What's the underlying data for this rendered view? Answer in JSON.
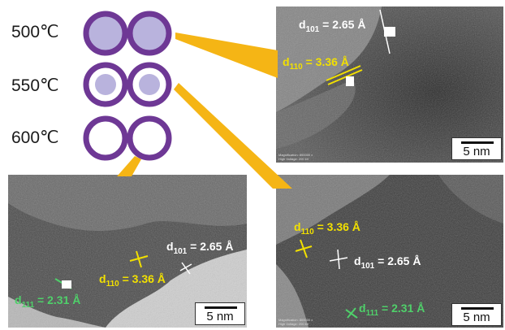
{
  "temperatures": [
    {
      "label": "500℃",
      "shell": "full-core"
    },
    {
      "label": "550℃",
      "shell": "partial-core"
    },
    {
      "label": "600℃",
      "shell": "hollow"
    }
  ],
  "colors": {
    "shell_purple": "#6e3895",
    "core_lavender": "#b9b3dd",
    "connector_yellow": "#f5b515",
    "label_yellow": "#f2e000",
    "label_green": "#4fd06a",
    "label_white": "#ffffff"
  },
  "panels": {
    "p500": {
      "scale": "5 nm",
      "annotations": [
        {
          "prefix": "d",
          "sub": "101",
          "suffix": " = 2.65 Å",
          "color": "white"
        },
        {
          "prefix": "d",
          "sub": "110",
          "suffix": " = 3.36 Å",
          "color": "yellow"
        }
      ],
      "meta": [
        "Magnification: 800000 x",
        "High Voltage: 200 kV"
      ]
    },
    "p600": {
      "scale": "5 nm",
      "annotations": [
        {
          "prefix": "d",
          "sub": "101",
          "suffix": " = 2.65 Å",
          "color": "white"
        },
        {
          "prefix": "d",
          "sub": "110",
          "suffix": " = 3.36 Å",
          "color": "yellow"
        },
        {
          "prefix": "d",
          "sub": "111",
          "suffix": " = 2.31 Å",
          "color": "green"
        }
      ]
    },
    "p550": {
      "scale": "5 nm",
      "annotations": [
        {
          "prefix": "d",
          "sub": "110",
          "suffix": " = 3.36 Å",
          "color": "yellow"
        },
        {
          "prefix": "d",
          "sub": "101",
          "suffix": " = 2.65 Å",
          "color": "white"
        },
        {
          "prefix": "d",
          "sub": "111",
          "suffix": " = 2.31 Å",
          "color": "green"
        }
      ],
      "meta": [
        "Magnification: 800000 x",
        "High Voltage: 200 kV"
      ]
    }
  }
}
